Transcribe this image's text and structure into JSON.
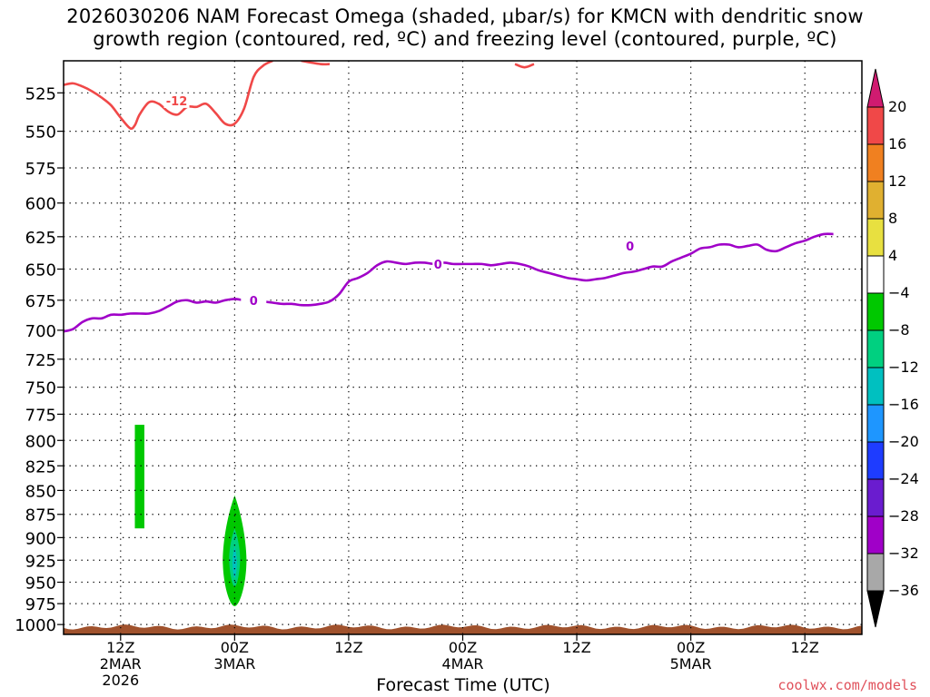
{
  "title": {
    "line1": "2026030206 NAM Forecast Omega (shaded, μbar/s) for KMCN with dendritic snow",
    "line2": "growth region (contoured, red, ºC) and freezing level (contoured, purple, ºC)"
  },
  "credit": "coolwx.com/models",
  "chart_data": {
    "type": "contour",
    "title": "2026030206 NAM Forecast Omega (shaded, μbar/s) for KMCN with dendritic snow growth region (contoured, red, ºC) and freezing level (contoured, purple, ºC)",
    "xlabel": "Forecast Time (UTC)",
    "ylabel": "",
    "y_axis": {
      "ticks": [
        525,
        550,
        575,
        600,
        625,
        650,
        675,
        700,
        725,
        750,
        775,
        800,
        825,
        850,
        875,
        900,
        925,
        950,
        975,
        1000
      ],
      "scale": "log-pressure",
      "range": [
        505,
        1012
      ]
    },
    "x_axis": {
      "unit": "hours since 2026030206",
      "range": [
        0,
        84
      ],
      "ticks": [
        {
          "x": 6,
          "label": [
            "12Z",
            "2MAR",
            "2026"
          ]
        },
        {
          "x": 18,
          "label": [
            "00Z",
            "3MAR"
          ]
        },
        {
          "x": 30,
          "label": [
            "12Z"
          ]
        },
        {
          "x": 42,
          "label": [
            "00Z",
            "4MAR"
          ]
        },
        {
          "x": 54,
          "label": [
            "12Z"
          ]
        },
        {
          "x": 66,
          "label": [
            "00Z",
            "5MAR"
          ]
        },
        {
          "x": 78,
          "label": [
            "12Z"
          ]
        }
      ]
    },
    "grid": true,
    "series": [
      {
        "name": "-12",
        "color": "#f04848",
        "label_at": [
          11.9,
          530
        ],
        "points": [
          [
            0,
            520
          ],
          [
            1,
            519
          ],
          [
            2,
            521
          ],
          [
            3,
            524
          ],
          [
            4,
            528
          ],
          [
            5,
            533
          ],
          [
            6,
            541
          ],
          [
            7,
            548
          ],
          [
            7.5,
            546
          ],
          [
            8,
            539
          ],
          [
            9,
            531
          ],
          [
            10,
            532
          ],
          [
            11,
            537
          ],
          [
            12,
            539
          ],
          [
            13,
            534
          ],
          [
            14,
            534
          ],
          [
            15,
            532
          ],
          [
            16,
            538
          ],
          [
            17,
            545
          ],
          [
            18,
            545
          ],
          [
            19,
            535
          ],
          [
            20,
            515
          ],
          [
            21,
            508
          ],
          [
            22,
            505
          ]
        ]
      },
      {
        "name": "-12",
        "color": "#f04848",
        "points": [
          [
            25,
            505
          ],
          [
            27,
            507
          ],
          [
            28,
            507
          ]
        ]
      },
      {
        "name": "-12",
        "color": "#f04848",
        "points": [
          [
            47.5,
            507
          ],
          [
            48.5,
            509
          ],
          [
            49.5,
            507
          ]
        ]
      },
      {
        "name": "0",
        "color": "#a000c8",
        "label_at": [
          20,
          675
        ],
        "points": [
          [
            0,
            701
          ],
          [
            1,
            699
          ],
          [
            2,
            693
          ],
          [
            3,
            690
          ],
          [
            4,
            690
          ],
          [
            5,
            687
          ],
          [
            6,
            687
          ],
          [
            7,
            686
          ],
          [
            8,
            686
          ],
          [
            9,
            686
          ],
          [
            10,
            684
          ],
          [
            11,
            680
          ],
          [
            12,
            676
          ],
          [
            13,
            675
          ],
          [
            14,
            677
          ],
          [
            15,
            676
          ],
          [
            16,
            677
          ],
          [
            17,
            675
          ],
          [
            18,
            674
          ],
          [
            19,
            675
          ],
          [
            20,
            675
          ],
          [
            21,
            676
          ],
          [
            22,
            677
          ],
          [
            23,
            678
          ],
          [
            24,
            678
          ],
          [
            25,
            679
          ],
          [
            26,
            679
          ],
          [
            27,
            678
          ],
          [
            28,
            676
          ],
          [
            29,
            670
          ],
          [
            30,
            660
          ],
          [
            31,
            657
          ],
          [
            32,
            653
          ],
          [
            33,
            647
          ],
          [
            34,
            644
          ],
          [
            35,
            645
          ],
          [
            36,
            646
          ],
          [
            37,
            645
          ],
          [
            38,
            645
          ],
          [
            39,
            646
          ],
          [
            40,
            645
          ],
          [
            41,
            646
          ],
          [
            42,
            646
          ],
          [
            43,
            646
          ],
          [
            44,
            646
          ],
          [
            45,
            647
          ],
          [
            46,
            646
          ],
          [
            47,
            645
          ],
          [
            48,
            646
          ],
          [
            49,
            648
          ],
          [
            50,
            651
          ],
          [
            51,
            653
          ],
          [
            52,
            655
          ],
          [
            53,
            657
          ],
          [
            54,
            658
          ],
          [
            55,
            659
          ],
          [
            56,
            658
          ],
          [
            57,
            657
          ],
          [
            58,
            655
          ],
          [
            59,
            653
          ],
          [
            60,
            652
          ],
          [
            61,
            650
          ],
          [
            62,
            648
          ],
          [
            63,
            648
          ],
          [
            64,
            644
          ],
          [
            65,
            641
          ],
          [
            66,
            638
          ],
          [
            67,
            634
          ],
          [
            68,
            633
          ],
          [
            69,
            631
          ],
          [
            70,
            631
          ],
          [
            71,
            633
          ],
          [
            72,
            632
          ],
          [
            73,
            631
          ],
          [
            74,
            635
          ],
          [
            75,
            636
          ],
          [
            76,
            633
          ],
          [
            77,
            630
          ],
          [
            78,
            628
          ],
          [
            79,
            625
          ],
          [
            80,
            623
          ],
          [
            81,
            623
          ]
        ]
      }
    ],
    "shaded_regions": [
      {
        "name": "omega -4 to -8",
        "color": "#00c800",
        "shape": "rect",
        "x": [
          7.5,
          8.5
        ],
        "p": [
          785,
          890
        ]
      },
      {
        "name": "omega -4 to -8",
        "color": "#00c800",
        "shape": "blob",
        "center": [
          18,
          930
        ],
        "halfwidth": 1.3,
        "p": [
          855,
          978
        ]
      },
      {
        "name": "omega -8 to -12",
        "color": "#00d080",
        "shape": "blob",
        "center": [
          18,
          925
        ],
        "halfwidth": 0.6,
        "p": [
          890,
          955
        ]
      },
      {
        "name": "omega -12 to -16",
        "color": "#00c0c0",
        "shape": "blob",
        "center": [
          18,
          928
        ],
        "halfwidth": 0.25,
        "p": [
          910,
          945
        ]
      }
    ],
    "terrain": {
      "color": "#a0522d",
      "top_p": 1003
    },
    "colorbar": {
      "labels": [
        "20",
        "16",
        "12",
        "8",
        "4",
        "−4",
        "−8",
        "−12",
        "−16",
        "−20",
        "−24",
        "−28",
        "−32",
        "−36"
      ],
      "colors": [
        "#d01b70",
        "#f04848",
        "#f08020",
        "#e0b030",
        "#e8e040",
        "#ffffff",
        "#00c800",
        "#00d080",
        "#00c0c0",
        "#1e96ff",
        "#1e3cff",
        "#6a1ccf",
        "#a000c8",
        "#a8a8a8",
        "#000000"
      ]
    }
  }
}
